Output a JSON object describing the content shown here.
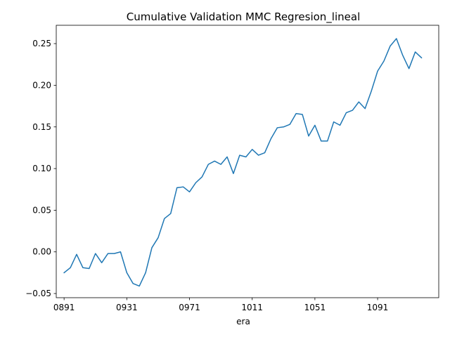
{
  "chart_data": {
    "type": "line",
    "title": "Cumulative Validation MMC Regresion_lineal",
    "xlabel": "era",
    "ylabel": "",
    "xlim": [
      886,
      1130
    ],
    "ylim": [
      -0.055,
      0.272
    ],
    "grid": false,
    "xticks": [
      891,
      931,
      971,
      1011,
      1051,
      1091
    ],
    "xtick_labels": [
      "0891",
      "0931",
      "0971",
      "1011",
      "1051",
      "1091"
    ],
    "yticks": [
      -0.05,
      0.0,
      0.05,
      0.1,
      0.15,
      0.2,
      0.25
    ],
    "ytick_labels": [
      "−0.05",
      "0.00",
      "0.05",
      "0.10",
      "0.15",
      "0.20",
      "0.25"
    ],
    "series": [
      {
        "color": "#1f77b4",
        "x": [
          891,
          895,
          899,
          903,
          907,
          911,
          915,
          919,
          923,
          927,
          931,
          935,
          939,
          943,
          947,
          951,
          955,
          959,
          963,
          967,
          971,
          975,
          979,
          983,
          987,
          991,
          995,
          999,
          1003,
          1007,
          1011,
          1015,
          1019,
          1023,
          1027,
          1031,
          1035,
          1039,
          1043,
          1047,
          1051,
          1055,
          1059,
          1063,
          1067,
          1071,
          1075,
          1079,
          1083,
          1087,
          1091,
          1095,
          1099,
          1103,
          1107,
          1111,
          1115,
          1119
        ],
        "y": [
          -0.025,
          -0.019,
          -0.003,
          -0.019,
          -0.02,
          -0.002,
          -0.013,
          -0.002,
          -0.002,
          0.0,
          -0.025,
          -0.038,
          -0.041,
          -0.025,
          0.005,
          0.017,
          0.04,
          0.046,
          0.077,
          0.078,
          0.072,
          0.083,
          0.09,
          0.105,
          0.109,
          0.105,
          0.114,
          0.094,
          0.116,
          0.114,
          0.123,
          0.116,
          0.119,
          0.136,
          0.149,
          0.15,
          0.153,
          0.166,
          0.165,
          0.139,
          0.152,
          0.133,
          0.133,
          0.156,
          0.152,
          0.167,
          0.17,
          0.18,
          0.172,
          0.193,
          0.217,
          0.229,
          0.247,
          0.256,
          0.236,
          0.22,
          0.24,
          0.233
        ]
      }
    ]
  }
}
